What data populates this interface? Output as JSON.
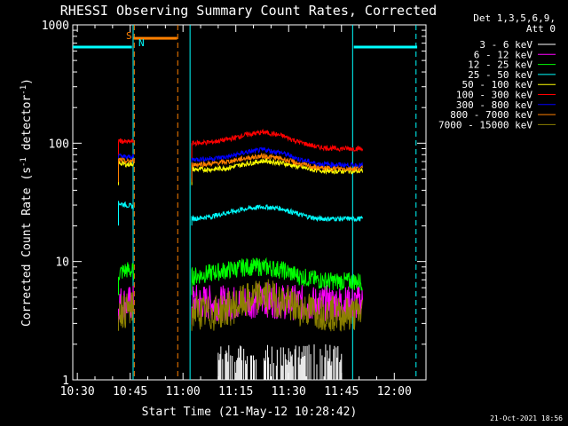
{
  "chart_data": {
    "type": "line",
    "title": "RHESSI Observing Summary Count Rates, Corrected",
    "xlabel": "Start Time (21-May-12 10:28:42)",
    "ylabel_main": "Corrected Count Rate (s",
    "ylabel_sup1": "-1",
    "ylabel_mid": " detector",
    "ylabel_sup2": "-1",
    "ylabel_end": ")",
    "yscale": "log",
    "xlim": [
      "10:28:42",
      "12:09:00"
    ],
    "ylim": [
      1,
      1000
    ],
    "x_ticks": [
      "10:30",
      "10:45",
      "11:00",
      "11:15",
      "11:30",
      "11:45",
      "12:00"
    ],
    "y_ticks": [
      {
        "value": 1,
        "label": "1"
      },
      {
        "value": 10,
        "label": "10"
      },
      {
        "value": 100,
        "label": "100"
      },
      {
        "value": 1000,
        "label": "1000"
      }
    ],
    "legend_header": [
      "Det 1,3,5,6,9,",
      "Att 0"
    ],
    "legend_placement": "top-right, outside plot",
    "timestamp": "21-Oct-2021 18:56",
    "flag_labels": {
      "saa": "S",
      "night": "N"
    },
    "flags": {
      "saa": {
        "start": "10:46:00",
        "end": "10:46:00",
        "level": 650
      },
      "saa_bar": {
        "start": "10:46:00",
        "end": "10:58:20",
        "level": 770,
        "color": "#ff8000"
      },
      "night_pre": {
        "start": "10:28:42",
        "end": "10:45:30",
        "level": 650,
        "color": "#00ffff"
      },
      "night_post": {
        "start": "11:48:30",
        "end": "12:06:30",
        "level": 650,
        "color": "#00ffff"
      }
    },
    "vlines": [
      {
        "time": "10:45:50",
        "color": "#00ffff",
        "style": "solid"
      },
      {
        "time": "10:46:10",
        "color": "#ff8000",
        "style": "dashed"
      },
      {
        "time": "10:58:30",
        "color": "#ff8000",
        "style": "dashed"
      },
      {
        "time": "11:02:00",
        "color": "#00ffff",
        "style": "solid"
      },
      {
        "time": "11:48:10",
        "color": "#00ffff",
        "style": "solid"
      },
      {
        "time": "12:06:10",
        "color": "#00ffff",
        "style": "dashed"
      }
    ],
    "segments": [
      {
        "start": "10:41:40",
        "end": "10:46:00"
      },
      {
        "start": "11:02:30",
        "end": "11:51:00"
      }
    ],
    "x_samples": [
      "10:42",
      "10:44",
      "10:46",
      "11:03",
      "11:08",
      "11:13",
      "11:18",
      "11:23",
      "11:28",
      "11:33",
      "11:38",
      "11:43",
      "11:48",
      "11:51"
    ],
    "series": [
      {
        "name": "3 - 6 keV",
        "color": "#ffffff",
        "values": [
          null,
          null,
          null,
          null,
          null,
          1.5,
          1.6,
          1.5,
          1.6,
          1.5,
          1.4,
          1.3,
          1.2,
          null
        ]
      },
      {
        "name": "6 - 12 keV",
        "color": "#ff00ff",
        "values": [
          4.5,
          4.4,
          4.5,
          4.6,
          4.5,
          4.4,
          4.6,
          4.8,
          4.6,
          4.5,
          4.4,
          4.5,
          4.4,
          4.5
        ]
      },
      {
        "name": "12 - 25 keV",
        "color": "#00ff00",
        "values": [
          8.0,
          8.5,
          8.2,
          7.5,
          8.0,
          8.5,
          9.0,
          9.0,
          8.5,
          7.5,
          7.0,
          6.8,
          6.8,
          6.8
        ]
      },
      {
        "name": "25 - 50 keV",
        "color": "#00ffff",
        "values": [
          31,
          30,
          29,
          23,
          24,
          26,
          28,
          29,
          28,
          25,
          23,
          23,
          23,
          23
        ]
      },
      {
        "name": "50 - 100 keV",
        "color": "#ffff00",
        "values": [
          68,
          66,
          67,
          60,
          60,
          62,
          67,
          71,
          68,
          63,
          59,
          58,
          58,
          58
        ]
      },
      {
        "name": "100 - 300 keV",
        "color": "#ff0000",
        "values": [
          105,
          102,
          104,
          100,
          102,
          108,
          118,
          124,
          116,
          102,
          93,
          90,
          90,
          90
        ]
      },
      {
        "name": "300 - 800 keV",
        "color": "#0000ff",
        "values": [
          78,
          76,
          77,
          73,
          74,
          77,
          84,
          88,
          83,
          73,
          67,
          66,
          65,
          65
        ]
      },
      {
        "name": "800 - 7000 keV",
        "color": "#ff8000",
        "values": [
          72,
          70,
          71,
          66,
          67,
          70,
          75,
          78,
          74,
          67,
          62,
          61,
          61,
          61
        ]
      },
      {
        "name": "7000 - 15000 keV",
        "color": "#8b8000",
        "values": [
          4.0,
          3.8,
          4.0,
          3.8,
          3.6,
          4.0,
          4.6,
          5.2,
          4.6,
          4.0,
          3.8,
          3.6,
          3.6,
          3.7
        ]
      }
    ]
  }
}
